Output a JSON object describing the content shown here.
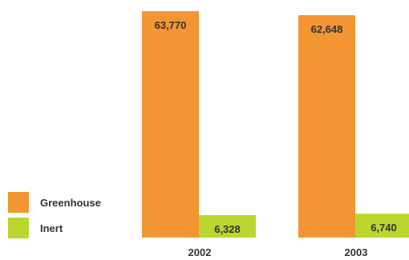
{
  "chart_data": {
    "type": "bar",
    "categories": [
      "2002",
      "2003"
    ],
    "series": [
      {
        "name": "Greenhouse",
        "color": "#f39533",
        "values": [
          63770,
          62648
        ]
      },
      {
        "name": "Inert",
        "color": "#bcd630",
        "values": [
          6328,
          6740
        ]
      }
    ],
    "value_labels": [
      [
        "63,770",
        "62,648"
      ],
      [
        "6,328",
        "6,740"
      ]
    ],
    "legend_position": "bottom-left",
    "grid": false
  }
}
